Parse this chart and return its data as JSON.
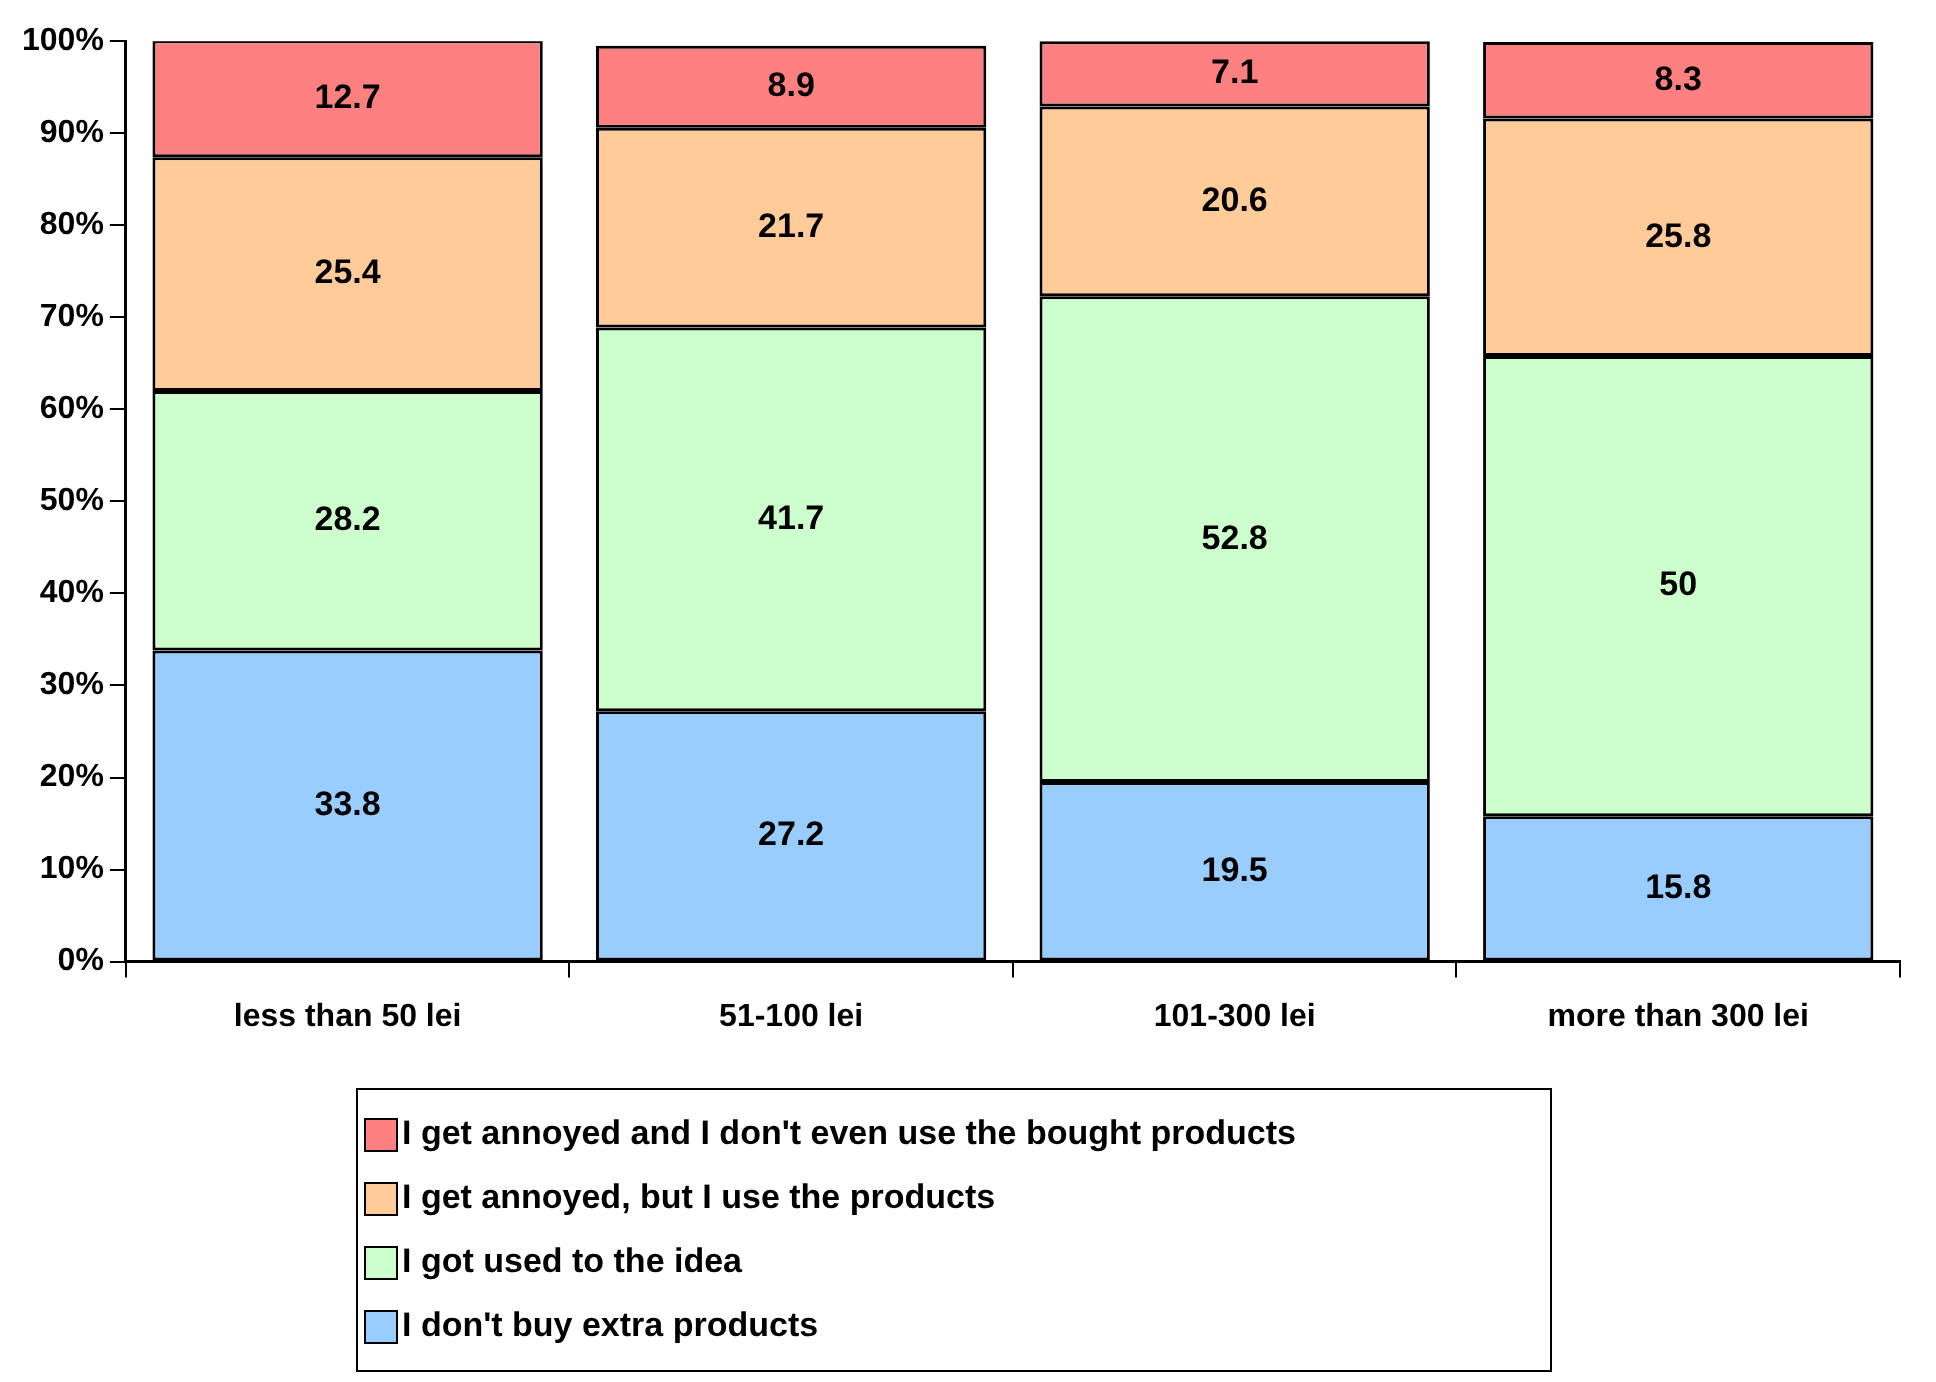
{
  "chart_data": {
    "type": "bar",
    "stacked": true,
    "categories": [
      "less than 50 lei",
      "51-100 lei",
      "101-300 lei",
      "more than 300 lei"
    ],
    "series": [
      {
        "name": "I don't buy extra products",
        "color": "#99ccff",
        "values": [
          33.8,
          27.2,
          19.5,
          15.8
        ]
      },
      {
        "name": "I got used to the idea",
        "color": "#ccffcc",
        "values": [
          28.2,
          41.7,
          52.8,
          50
        ]
      },
      {
        "name": "I get annoyed, but I use the products",
        "color": "#ffcc99",
        "values": [
          25.4,
          21.7,
          20.6,
          25.8
        ]
      },
      {
        "name": "I get annoyed and I don't even use the bought products",
        "color": "#ff8080",
        "values": [
          12.7,
          8.9,
          7.1,
          8.3
        ]
      }
    ],
    "ylim": [
      0,
      100
    ],
    "yticks": [
      {
        "value": 0,
        "label": "0%"
      },
      {
        "value": 10,
        "label": "10%"
      },
      {
        "value": 20,
        "label": "20%"
      },
      {
        "value": 30,
        "label": "30%"
      },
      {
        "value": 40,
        "label": "40%"
      },
      {
        "value": 50,
        "label": "50%"
      },
      {
        "value": 60,
        "label": "60%"
      },
      {
        "value": 70,
        "label": "70%"
      },
      {
        "value": 80,
        "label": "80%"
      },
      {
        "value": 90,
        "label": "90%"
      },
      {
        "value": 100,
        "label": "100%"
      }
    ],
    "grid": false,
    "legend": "bottom",
    "data_labels": true
  }
}
